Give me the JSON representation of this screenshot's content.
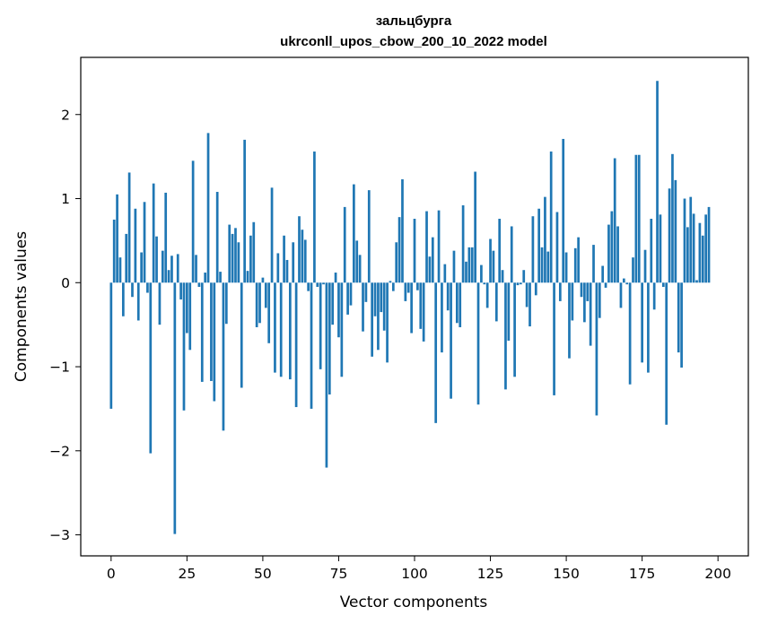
{
  "chart_data": {
    "type": "bar",
    "title_line1": "зальцбурга",
    "title_line2": "ukrconll_upos_cbow_200_10_2022 model",
    "xlabel": "Vector components",
    "ylabel": "Components values",
    "xlim": [
      -10,
      210
    ],
    "ylim": [
      -3.25,
      2.68
    ],
    "xticks": [
      0,
      25,
      50,
      75,
      100,
      125,
      150,
      175,
      200
    ],
    "xtick_labels": [
      "0",
      "25",
      "50",
      "75",
      "100",
      "125",
      "150",
      "175",
      "200"
    ],
    "yticks": [
      -3,
      -2,
      -1,
      0,
      1,
      2
    ],
    "ytick_labels": [
      "−3",
      "−2",
      "−1",
      "0",
      "1",
      "2"
    ],
    "bar_color": "#1f77b4",
    "grid": false,
    "values": [
      -1.5,
      0.75,
      1.05,
      0.3,
      -0.4,
      0.58,
      1.31,
      -0.17,
      0.88,
      -0.45,
      0.36,
      0.96,
      -0.12,
      -2.03,
      1.18,
      0.55,
      -0.5,
      0.38,
      1.07,
      0.15,
      0.32,
      -2.99,
      0.34,
      -0.2,
      -1.52,
      -0.6,
      -0.8,
      1.45,
      0.33,
      -0.05,
      -1.18,
      0.12,
      1.78,
      -1.17,
      -1.41,
      1.08,
      0.13,
      -1.76,
      -0.49,
      0.69,
      0.58,
      0.65,
      0.48,
      -1.25,
      1.7,
      0.14,
      0.56,
      0.72,
      -0.53,
      -0.48,
      0.06,
      -0.3,
      -0.72,
      1.13,
      -1.07,
      0.35,
      -1.12,
      0.56,
      0.27,
      -1.15,
      0.48,
      -1.48,
      0.79,
      0.63,
      0.51,
      -0.1,
      -1.5,
      1.56,
      -0.05,
      -1.03,
      -0.02,
      -2.2,
      -1.33,
      -0.5,
      0.12,
      -0.65,
      -1.12,
      0.9,
      -0.38,
      -0.27,
      1.17,
      0.5,
      0.33,
      -0.58,
      -0.23,
      1.1,
      -0.88,
      -0.4,
      -0.8,
      -0.35,
      -0.57,
      -0.95,
      0.02,
      -0.1,
      0.48,
      0.78,
      1.23,
      -0.22,
      -0.12,
      -0.6,
      0.76,
      -0.09,
      -0.55,
      -0.7,
      0.85,
      0.31,
      0.54,
      -1.67,
      0.86,
      -0.83,
      0.22,
      -0.33,
      -1.38,
      0.38,
      -0.48,
      -0.53,
      0.92,
      0.25,
      0.42,
      0.42,
      1.32,
      -1.45,
      0.21,
      -0.02,
      -0.3,
      0.52,
      0.38,
      -0.46,
      0.76,
      0.15,
      -1.27,
      -0.69,
      0.67,
      -1.12,
      -0.03,
      -0.02,
      0.15,
      -0.29,
      -0.52,
      0.79,
      -0.15,
      0.88,
      0.42,
      1.02,
      0.37,
      1.56,
      -1.34,
      0.84,
      -0.22,
      1.71,
      0.36,
      -0.9,
      -0.45,
      0.41,
      0.54,
      -0.17,
      -0.47,
      -0.22,
      -0.75,
      0.45,
      -1.58,
      -0.42,
      0.2,
      -0.06,
      0.69,
      0.85,
      1.48,
      0.67,
      -0.3,
      0.05,
      -0.02,
      -1.21,
      0.3,
      1.52,
      1.52,
      -0.95,
      0.39,
      -1.07,
      0.76,
      -0.32,
      2.4,
      0.81,
      -0.05,
      -1.69,
      1.12,
      1.53,
      1.22,
      -0.83,
      -1.01,
      1.0,
      0.66,
      1.02,
      0.82,
      0.03,
      0.71,
      0.56,
      0.81,
      0.9
    ]
  }
}
